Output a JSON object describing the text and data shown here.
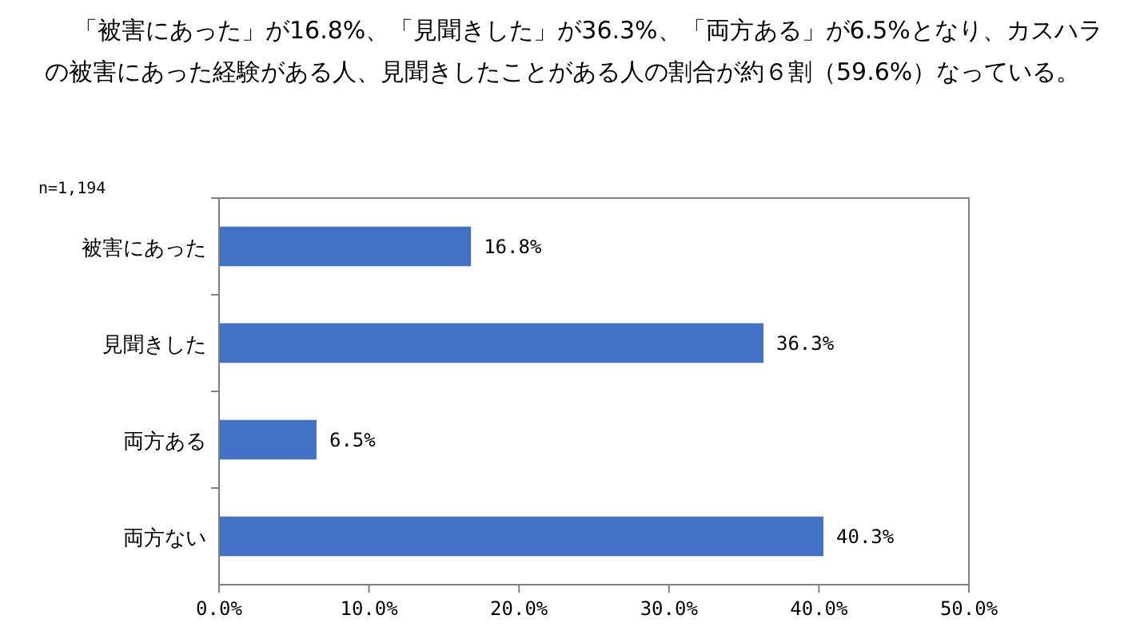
{
  "chart_data": {
    "type": "bar",
    "orientation": "horizontal",
    "title": "「被害にあった」が16.8%、「見聞きした」が36.3%、「両方ある」が6.5%となり、カスハラの被害にあった経験がある人、見聞きしたことがある人の割合が約６割（59.6%）なっている。",
    "annotations": [
      "n=1,194"
    ],
    "categories": [
      "被害にあった",
      "見聞きした",
      "両方ある",
      "両方ない"
    ],
    "values": [
      16.8,
      36.3,
      6.5,
      40.3
    ],
    "value_labels": [
      "16.8%",
      "36.3%",
      "6.5%",
      "40.3%"
    ],
    "color": "#4472c4",
    "xlim": [
      0,
      50
    ],
    "xticks": [
      {
        "value": 0,
        "label": "0.0%"
      },
      {
        "value": 10,
        "label": "10.0%"
      },
      {
        "value": 20,
        "label": "20.0%"
      },
      {
        "value": 30,
        "label": "30.0%"
      },
      {
        "value": 40,
        "label": "40.0%"
      },
      {
        "value": 50,
        "label": "50.0%"
      }
    ],
    "grid": false
  }
}
